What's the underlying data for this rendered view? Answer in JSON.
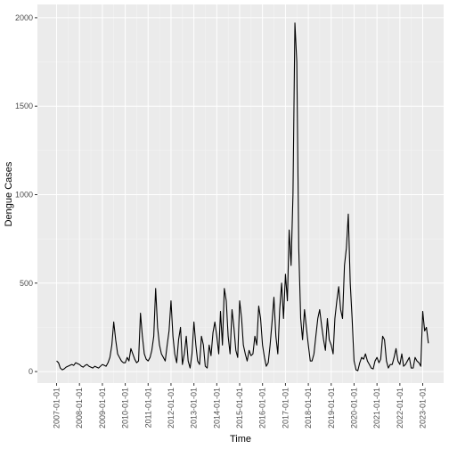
{
  "chart_data": {
    "type": "line",
    "x_label": "Time",
    "y_label": "Dengue Cases",
    "color": "#000000",
    "grid": true,
    "xlim": [
      "2006-03-01",
      "2023-12-01"
    ],
    "ylim": [
      -65,
      2075
    ],
    "xticks": [
      "2007-01-01",
      "2008-01-01",
      "2009-01-01",
      "2010-01-01",
      "2011-01-01",
      "2012-01-01",
      "2013-01-01",
      "2014-01-01",
      "2015-01-01",
      "2016-01-01",
      "2017-01-01",
      "2018-01-01",
      "2019-01-01",
      "2020-01-01",
      "2021-01-01",
      "2022-01-01",
      "2023-01-01"
    ],
    "yticks": [
      0,
      500,
      1000,
      1500,
      2000
    ],
    "x": [
      "2007-01-01",
      "2007-02-01",
      "2007-03-01",
      "2007-04-01",
      "2007-05-01",
      "2007-06-01",
      "2007-07-01",
      "2007-08-01",
      "2007-09-01",
      "2007-10-01",
      "2007-11-01",
      "2007-12-01",
      "2008-01-01",
      "2008-02-01",
      "2008-03-01",
      "2008-04-01",
      "2008-05-01",
      "2008-06-01",
      "2008-07-01",
      "2008-08-01",
      "2008-09-01",
      "2008-10-01",
      "2008-11-01",
      "2008-12-01",
      "2009-01-01",
      "2009-02-01",
      "2009-03-01",
      "2009-04-01",
      "2009-05-01",
      "2009-06-01",
      "2009-07-01",
      "2009-08-01",
      "2009-09-01",
      "2009-10-01",
      "2009-11-01",
      "2009-12-01",
      "2010-01-01",
      "2010-02-01",
      "2010-03-01",
      "2010-04-01",
      "2010-05-01",
      "2010-06-01",
      "2010-07-01",
      "2010-08-01",
      "2010-09-01",
      "2010-10-01",
      "2010-11-01",
      "2010-12-01",
      "2011-01-01",
      "2011-02-01",
      "2011-03-01",
      "2011-04-01",
      "2011-05-01",
      "2011-06-01",
      "2011-07-01",
      "2011-08-01",
      "2011-09-01",
      "2011-10-01",
      "2011-11-01",
      "2011-12-01",
      "2012-01-01",
      "2012-02-01",
      "2012-03-01",
      "2012-04-01",
      "2012-05-01",
      "2012-06-01",
      "2012-07-01",
      "2012-08-01",
      "2012-09-01",
      "2012-10-01",
      "2012-11-01",
      "2012-12-01",
      "2013-01-01",
      "2013-02-01",
      "2013-03-01",
      "2013-04-01",
      "2013-05-01",
      "2013-06-01",
      "2013-07-01",
      "2013-08-01",
      "2013-09-01",
      "2013-10-01",
      "2013-11-01",
      "2013-12-01",
      "2014-01-01",
      "2014-02-01",
      "2014-03-01",
      "2014-04-01",
      "2014-05-01",
      "2014-06-01",
      "2014-07-01",
      "2014-08-01",
      "2014-09-01",
      "2014-10-01",
      "2014-11-01",
      "2014-12-01",
      "2015-01-01",
      "2015-02-01",
      "2015-03-01",
      "2015-04-01",
      "2015-05-01",
      "2015-06-01",
      "2015-07-01",
      "2015-08-01",
      "2015-09-01",
      "2015-10-01",
      "2015-11-01",
      "2015-12-01",
      "2016-01-01",
      "2016-02-01",
      "2016-03-01",
      "2016-04-01",
      "2016-05-01",
      "2016-06-01",
      "2016-07-01",
      "2016-08-01",
      "2016-09-01",
      "2016-10-01",
      "2016-11-01",
      "2016-12-01",
      "2017-01-01",
      "2017-02-01",
      "2017-03-01",
      "2017-04-01",
      "2017-05-01",
      "2017-06-01",
      "2017-07-01",
      "2017-08-01",
      "2017-09-01",
      "2017-10-01",
      "2017-11-01",
      "2017-12-01",
      "2018-01-01",
      "2018-02-01",
      "2018-03-01",
      "2018-04-01",
      "2018-05-01",
      "2018-06-01",
      "2018-07-01",
      "2018-08-01",
      "2018-09-01",
      "2018-10-01",
      "2018-11-01",
      "2018-12-01",
      "2019-01-01",
      "2019-02-01",
      "2019-03-01",
      "2019-04-01",
      "2019-05-01",
      "2019-06-01",
      "2019-07-01",
      "2019-08-01",
      "2019-09-01",
      "2019-10-01",
      "2019-11-01",
      "2019-12-01",
      "2020-01-01",
      "2020-02-01",
      "2020-03-01",
      "2020-04-01",
      "2020-05-01",
      "2020-06-01",
      "2020-07-01",
      "2020-08-01",
      "2020-09-01",
      "2020-10-01",
      "2020-11-01",
      "2020-12-01",
      "2021-01-01",
      "2021-02-01",
      "2021-03-01",
      "2021-04-01",
      "2021-05-01",
      "2021-06-01",
      "2021-07-01",
      "2021-08-01",
      "2021-09-01",
      "2021-10-01",
      "2021-11-01",
      "2021-12-01",
      "2022-01-01",
      "2022-02-01",
      "2022-03-01",
      "2022-04-01",
      "2022-05-01",
      "2022-06-01",
      "2022-07-01",
      "2022-08-01",
      "2022-09-01",
      "2022-10-01",
      "2022-11-01",
      "2022-12-01",
      "2023-01-01",
      "2023-02-01",
      "2023-03-01",
      "2023-04-01"
    ],
    "values": [
      60,
      50,
      20,
      10,
      15,
      25,
      30,
      35,
      40,
      35,
      50,
      45,
      40,
      30,
      25,
      35,
      40,
      30,
      25,
      20,
      30,
      25,
      20,
      30,
      40,
      35,
      30,
      50,
      80,
      150,
      280,
      180,
      100,
      80,
      60,
      50,
      50,
      80,
      60,
      130,
      100,
      70,
      50,
      60,
      330,
      200,
      100,
      70,
      60,
      80,
      120,
      200,
      470,
      250,
      150,
      100,
      80,
      60,
      150,
      230,
      400,
      200,
      100,
      50,
      180,
      250,
      40,
      100,
      200,
      60,
      20,
      100,
      280,
      150,
      60,
      40,
      200,
      150,
      30,
      20,
      150,
      90,
      220,
      280,
      200,
      100,
      340,
      150,
      470,
      400,
      200,
      100,
      350,
      250,
      120,
      80,
      400,
      300,
      150,
      100,
      60,
      120,
      90,
      100,
      200,
      150,
      370,
      300,
      150,
      80,
      30,
      50,
      150,
      280,
      420,
      200,
      100,
      350,
      500,
      300,
      550,
      400,
      800,
      600,
      1000,
      1970,
      1750,
      700,
      300,
      180,
      350,
      250,
      150,
      60,
      60,
      100,
      200,
      300,
      350,
      260,
      180,
      120,
      300,
      180,
      150,
      100,
      300,
      400,
      480,
      350,
      300,
      600,
      700,
      890,
      500,
      300,
      60,
      10,
      5,
      50,
      80,
      70,
      100,
      60,
      40,
      20,
      15,
      60,
      80,
      50,
      70,
      200,
      180,
      60,
      20,
      40,
      40,
      80,
      130,
      60,
      40,
      100,
      30,
      40,
      60,
      80,
      20,
      20,
      80,
      60,
      50,
      30,
      340,
      230,
      250,
      160
    ]
  }
}
